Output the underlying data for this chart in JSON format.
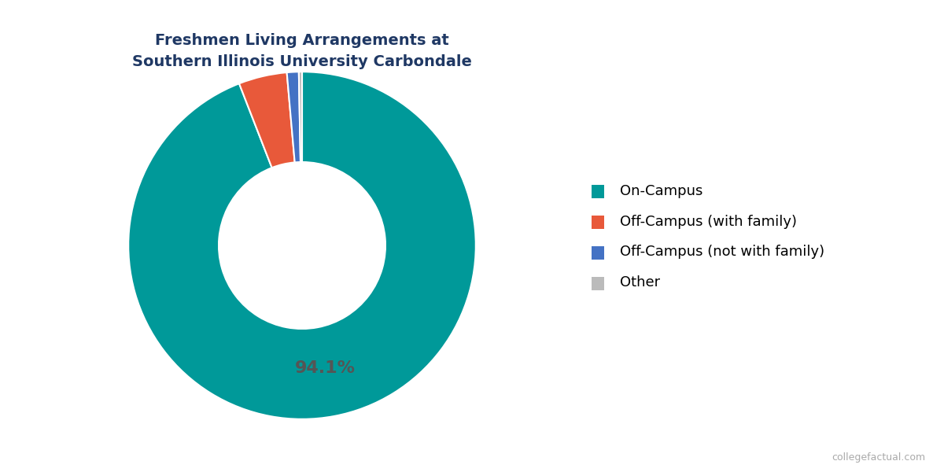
{
  "title": "Freshmen Living Arrangements at\nSouthern Illinois University Carbondale",
  "slices": [
    94.1,
    4.5,
    1.1,
    0.3
  ],
  "labels": [
    "On-Campus",
    "Off-Campus (with family)",
    "Off-Campus (not with family)",
    "Other"
  ],
  "colors": [
    "#009999",
    "#E8593A",
    "#4472C4",
    "#BBBBBB"
  ],
  "annotation_text": "94.1%",
  "annotation_color": "#555555",
  "wedge_edge_color": "#FFFFFF",
  "background_color": "#FFFFFF",
  "title_color": "#1F3864",
  "watermark": "collegefactual.com",
  "donut_width": 0.52,
  "legend_fontsize": 13,
  "title_fontsize": 14,
  "annotation_fontsize": 16
}
